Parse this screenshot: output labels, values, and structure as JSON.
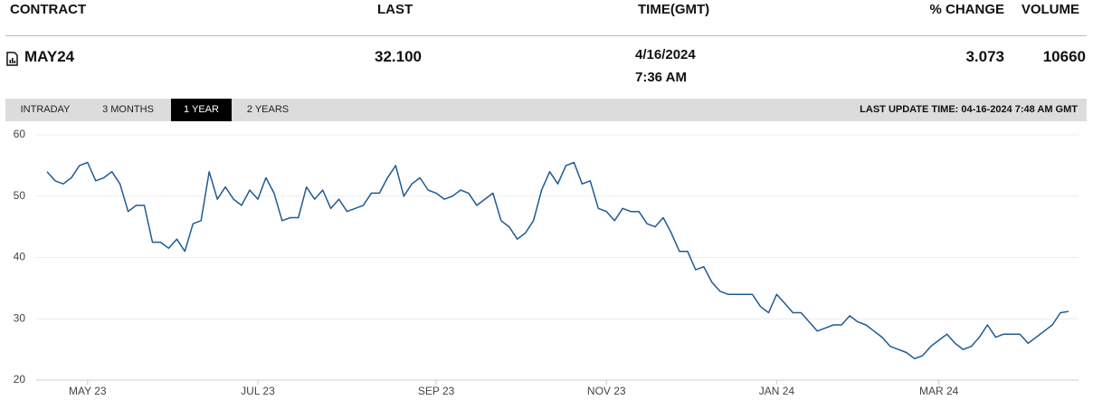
{
  "header": {
    "columns": [
      "CONTRACT",
      "LAST",
      "TIME(GMT)",
      "% CHANGE",
      "VOLUME"
    ]
  },
  "row": {
    "contract": "MAY24",
    "last": "32.100",
    "date": "4/16/2024",
    "time": "7:36 AM",
    "change": "3.073",
    "volume": "10660"
  },
  "tabs": [
    "INTRADAY",
    "3 MONTHS",
    "1 YEAR",
    "2 YEARS"
  ],
  "active_tab": 2,
  "last_update": "LAST UPDATE TIME: 04-16-2024 7:48 AM GMT",
  "chart_data": {
    "type": "line",
    "color": "#1f5b94",
    "grid": true,
    "ylim": [
      20,
      60
    ],
    "yticks": [
      20,
      30,
      40,
      50,
      60
    ],
    "categories": [
      null,
      null,
      null,
      null,
      null,
      "MAY 23",
      null,
      null,
      null,
      null,
      null,
      null,
      null,
      null,
      null,
      null,
      null,
      null,
      null,
      null,
      null,
      null,
      null,
      null,
      null,
      null,
      "JUL 23",
      null,
      null,
      null,
      null,
      null,
      null,
      null,
      null,
      null,
      null,
      null,
      null,
      null,
      null,
      null,
      null,
      null,
      null,
      null,
      null,
      null,
      "SEP 23",
      null,
      null,
      null,
      null,
      null,
      null,
      null,
      null,
      null,
      null,
      null,
      null,
      null,
      null,
      null,
      null,
      null,
      null,
      null,
      null,
      "NOV 23",
      null,
      null,
      null,
      null,
      null,
      null,
      null,
      null,
      null,
      null,
      null,
      null,
      null,
      null,
      null,
      null,
      null,
      null,
      null,
      null,
      "JAN 24",
      null,
      null,
      null,
      null,
      null,
      null,
      null,
      null,
      null,
      null,
      null,
      null,
      null,
      null,
      null,
      null,
      null,
      null,
      null,
      "MAR 24",
      null,
      null,
      null,
      null,
      null,
      null,
      null,
      null,
      null,
      null,
      null,
      null,
      null,
      null,
      null,
      null
    ],
    "values": [
      54,
      52.5,
      52,
      53,
      55,
      55.5,
      52.5,
      53,
      54,
      52,
      47.5,
      48.5,
      48.5,
      42.5,
      42.5,
      41.5,
      43,
      41,
      45.5,
      46,
      54,
      49.5,
      51.5,
      49.5,
      48.5,
      51,
      49.5,
      53,
      50.5,
      46,
      46.5,
      46.5,
      51.5,
      49.5,
      51,
      48,
      49.5,
      47.5,
      48,
      48.5,
      50.5,
      50.5,
      53,
      55,
      50,
      52,
      53,
      51,
      50.5,
      49.5,
      50,
      51,
      50.5,
      48.5,
      49.5,
      50.5,
      46,
      45,
      43,
      44,
      46,
      51,
      54,
      52,
      55,
      55.5,
      52,
      52.5,
      48,
      47.5,
      46,
      48,
      47.5,
      47.5,
      45.5,
      45,
      46.5,
      44,
      41,
      41,
      38,
      38.5,
      36,
      34.5,
      34,
      34,
      34,
      34,
      32,
      31,
      34,
      32.5,
      31,
      31,
      29.5,
      28,
      28.5,
      29,
      29,
      30.5,
      29.5,
      29,
      28,
      27,
      25.5,
      25,
      24.5,
      23.5,
      24,
      25.5,
      26.5,
      27.5,
      26,
      25,
      25.5,
      27,
      29,
      27,
      27.5,
      27.5,
      27.5,
      26,
      27,
      28,
      29,
      31,
      31.2
    ]
  }
}
